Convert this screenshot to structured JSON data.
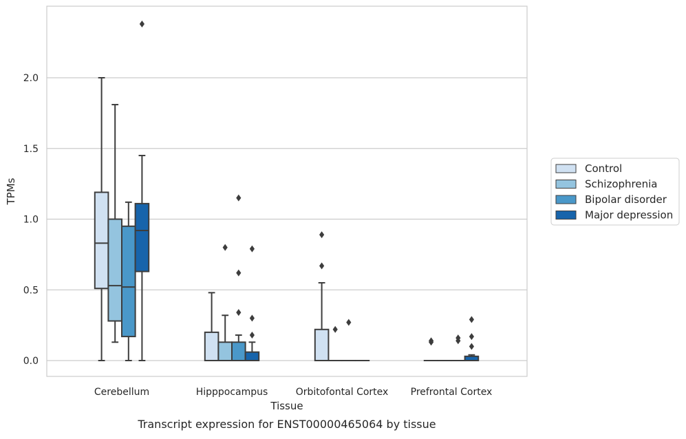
{
  "chart_data": {
    "type": "box",
    "xlabel": "Tissue",
    "ylabel": "TPMs",
    "caption": "Transcript expression for ENST00000465064 by tissue",
    "categories": [
      "Cerebellum",
      "Hipppocampus",
      "Orbitofontal Cortex",
      "Prefrontal Cortex"
    ],
    "ylim": [
      -0.12,
      2.5
    ],
    "yticks": [
      0.0,
      0.5,
      1.0,
      1.5,
      2.0
    ],
    "ytick_labels": [
      "0.0",
      "0.5",
      "1.0",
      "1.5",
      "2.0"
    ],
    "grid": "horizontal",
    "legend_position": "right",
    "series": [
      {
        "name": "Control",
        "color": "#d0e1f2",
        "boxes": [
          {
            "whisker_low": 0.0,
            "q1": 0.51,
            "median": 0.83,
            "q3": 1.19,
            "whisker_high": 2.0,
            "outliers": []
          },
          {
            "whisker_low": 0.0,
            "q1": 0.0,
            "median": 0.0,
            "q3": 0.2,
            "whisker_high": 0.48,
            "outliers": []
          },
          {
            "whisker_low": 0.0,
            "q1": 0.0,
            "median": 0.0,
            "q3": 0.22,
            "whisker_high": 0.55,
            "outliers": [
              0.67,
              0.89
            ]
          },
          {
            "whisker_low": 0.0,
            "q1": 0.0,
            "median": 0.0,
            "q3": 0.0,
            "whisker_high": 0.0,
            "outliers": [
              0.13,
              0.14
            ]
          }
        ]
      },
      {
        "name": "Schizophrenia",
        "color": "#94c4df",
        "boxes": [
          {
            "whisker_low": 0.13,
            "q1": 0.28,
            "median": 0.53,
            "q3": 1.0,
            "whisker_high": 1.81,
            "outliers": []
          },
          {
            "whisker_low": 0.0,
            "q1": 0.0,
            "median": 0.0,
            "q3": 0.13,
            "whisker_high": 0.32,
            "outliers": [
              0.8
            ]
          },
          {
            "whisker_low": 0.0,
            "q1": 0.0,
            "median": 0.0,
            "q3": 0.0,
            "whisker_high": 0.0,
            "outliers": [
              0.22
            ]
          },
          {
            "whisker_low": 0.0,
            "q1": 0.0,
            "median": 0.0,
            "q3": 0.0,
            "whisker_high": 0.0,
            "outliers": []
          }
        ]
      },
      {
        "name": "Bipolar disorder",
        "color": "#4a98c9",
        "boxes": [
          {
            "whisker_low": 0.0,
            "q1": 0.17,
            "median": 0.52,
            "q3": 0.95,
            "whisker_high": 1.12,
            "outliers": []
          },
          {
            "whisker_low": 0.0,
            "q1": 0.0,
            "median": 0.0,
            "q3": 0.13,
            "whisker_high": 0.18,
            "outliers": [
              0.34,
              0.62,
              1.15
            ]
          },
          {
            "whisker_low": 0.0,
            "q1": 0.0,
            "median": 0.0,
            "q3": 0.0,
            "whisker_high": 0.0,
            "outliers": [
              0.27
            ]
          },
          {
            "whisker_low": 0.0,
            "q1": 0.0,
            "median": 0.0,
            "q3": 0.0,
            "whisker_high": 0.0,
            "outliers": [
              0.14,
              0.16
            ]
          }
        ]
      },
      {
        "name": "Major depression",
        "color": "#1764ab",
        "boxes": [
          {
            "whisker_low": 0.0,
            "q1": 0.63,
            "median": 0.92,
            "q3": 1.11,
            "whisker_high": 1.45,
            "outliers": [
              2.38
            ]
          },
          {
            "whisker_low": 0.0,
            "q1": 0.0,
            "median": 0.0,
            "q3": 0.06,
            "whisker_high": 0.13,
            "outliers": [
              0.18,
              0.3,
              0.79
            ]
          },
          {
            "whisker_low": 0.0,
            "q1": 0.0,
            "median": 0.0,
            "q3": 0.0,
            "whisker_high": 0.0,
            "outliers": []
          },
          {
            "whisker_low": 0.0,
            "q1": 0.0,
            "median": 0.0,
            "q3": 0.03,
            "whisker_high": 0.04,
            "outliers": [
              0.1,
              0.17,
              0.29
            ]
          }
        ]
      }
    ]
  }
}
